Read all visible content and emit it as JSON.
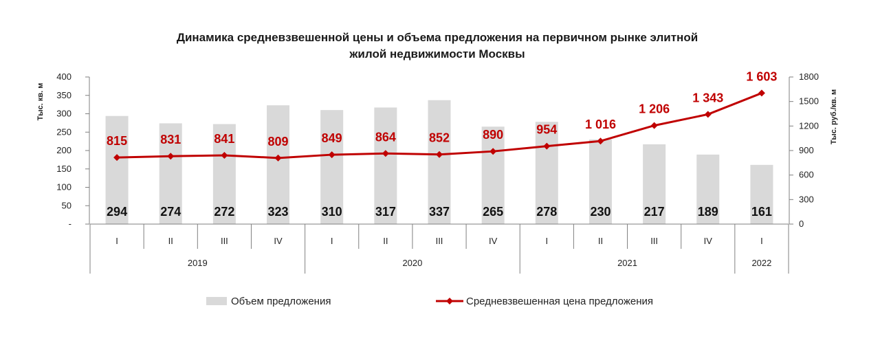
{
  "chart_data": {
    "type": "bar",
    "title_lines": [
      "Динамика средневзвешенной цены и объема предложения на первичном рынке элитной",
      "жилой недвижимости Москвы"
    ],
    "categories": [
      "I",
      "II",
      "III",
      "IV",
      "I",
      "II",
      "III",
      "IV",
      "I",
      "II",
      "III",
      "IV",
      "I"
    ],
    "groups": [
      {
        "label": "2019",
        "count": 4
      },
      {
        "label": "2020",
        "count": 4
      },
      {
        "label": "2021",
        "count": 4
      },
      {
        "label": "2022",
        "count": 1
      }
    ],
    "ylabel_left": "Тыс. кв. м",
    "ylabel_right": "Тыс. руб./кв. м",
    "ylim_left": [
      0,
      400
    ],
    "yticks_left": [
      "-",
      "50",
      "100",
      "150",
      "200",
      "250",
      "300",
      "350",
      "400"
    ],
    "ylim_right": [
      0,
      1800
    ],
    "yticks_right": [
      "0",
      "300",
      "600",
      "900",
      "1200",
      "1500",
      "1800"
    ],
    "series": [
      {
        "name": "Объем предложения",
        "type": "bar",
        "axis": "left",
        "values": [
          294,
          274,
          272,
          323,
          310,
          317,
          337,
          265,
          278,
          230,
          217,
          189,
          161
        ],
        "labels": [
          "294",
          "274",
          "272",
          "323",
          "310",
          "317",
          "337",
          "265",
          "278",
          "230",
          "217",
          "189",
          "161"
        ],
        "color": "#d9d9d9"
      },
      {
        "name": "Средневзвешенная цена предложения",
        "type": "line",
        "axis": "right",
        "values": [
          815,
          831,
          841,
          809,
          849,
          864,
          852,
          890,
          954,
          1016,
          1206,
          1343,
          1603
        ],
        "labels": [
          "815",
          "831",
          "841",
          "809",
          "849",
          "864",
          "852",
          "890",
          "954",
          "1 016",
          "1 206",
          "1 343",
          "1 603"
        ],
        "color": "#c00000"
      }
    ],
    "legend_position": "bottom"
  }
}
